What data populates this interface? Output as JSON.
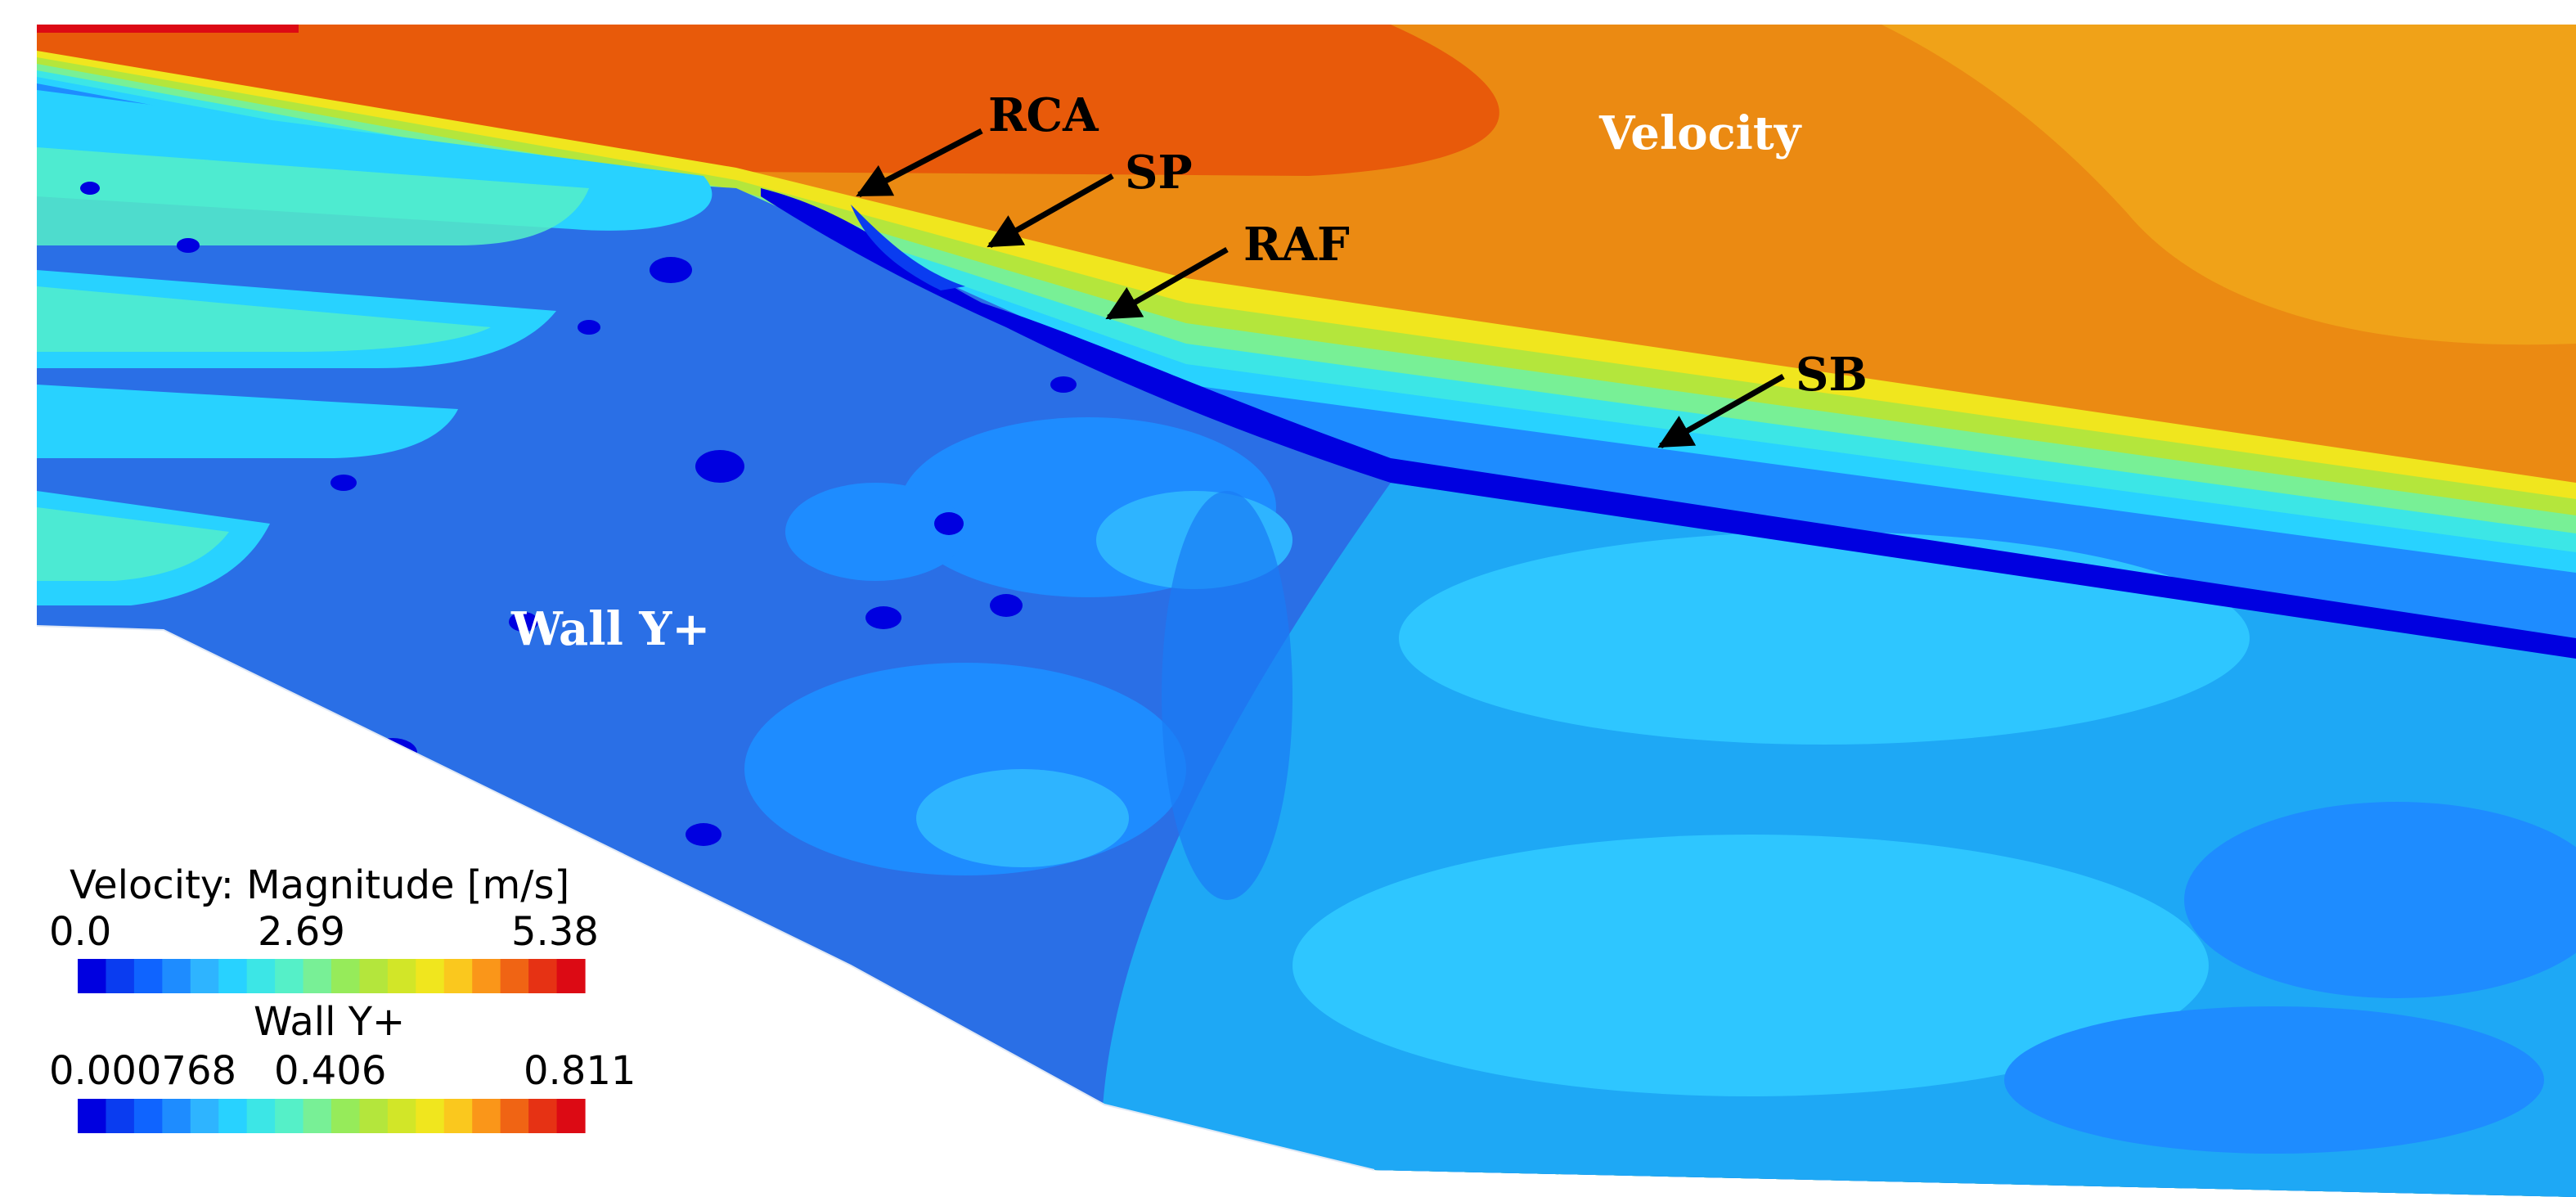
{
  "field_labels": {
    "velocity": "Velocity",
    "wall_yplus": "Wall Y+"
  },
  "annotations": [
    {
      "id": "rca",
      "text": "RCA"
    },
    {
      "id": "sp",
      "text": "SP"
    },
    {
      "id": "raf",
      "text": "RAF"
    },
    {
      "id": "sb",
      "text": "SB"
    }
  ],
  "legends": [
    {
      "id": "velocity",
      "title": "Velocity: Magnitude [m/s]",
      "ticks": [
        "0.0",
        "2.69",
        "5.38"
      ],
      "min": 0.0,
      "mid": 2.69,
      "max": 5.38
    },
    {
      "id": "wall-yplus",
      "title": "Wall Y+",
      "ticks": [
        "0.000768",
        "0.406",
        "0.811"
      ],
      "min": 0.000768,
      "mid": 0.406,
      "max": 0.811
    }
  ],
  "colormap": [
    "#0000e0",
    "#0a3cf0",
    "#0f64ff",
    "#1e8cff",
    "#2eb4ff",
    "#28d2ff",
    "#3ce6e6",
    "#55f0c8",
    "#78f096",
    "#96eb5a",
    "#b4e63c",
    "#d2e628",
    "#f0e61e",
    "#fac81e",
    "#fa9619",
    "#f06414",
    "#e63214",
    "#dc0a14"
  ]
}
